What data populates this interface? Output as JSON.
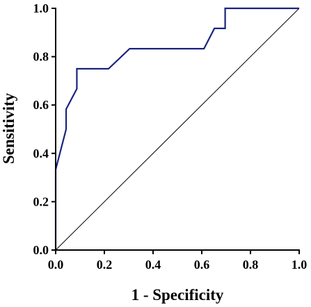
{
  "chart_data": {
    "type": "line",
    "title": "",
    "xlabel": "1 - Specificity",
    "ylabel": "Sensitivity",
    "xlim": [
      0,
      1
    ],
    "ylim": [
      0,
      1
    ],
    "x_ticks": [
      "0.0",
      "0.2",
      "0.4",
      "0.6",
      "0.8",
      "1.0"
    ],
    "y_ticks": [
      "0.0",
      "0.2",
      "0.4",
      "0.6",
      "0.8",
      "1.0"
    ],
    "grid": false,
    "legend": "none",
    "colors": {
      "roc_curve": "#1a237e",
      "reference_line": "#000000",
      "axes": "#000000"
    },
    "series": [
      {
        "x": [
          0.0,
          0.0,
          0.043,
          0.043,
          0.087,
          0.087,
          0.217,
          0.304,
          0.609,
          0.652,
          0.696,
          0.696,
          1.0
        ],
        "y": [
          0.0,
          0.333,
          0.5,
          0.583,
          0.667,
          0.75,
          0.75,
          0.833,
          0.833,
          0.917,
          0.917,
          1.0,
          1.0
        ]
      },
      {
        "x": [
          0.0,
          1.0
        ],
        "y": [
          0.0,
          1.0
        ]
      }
    ]
  }
}
